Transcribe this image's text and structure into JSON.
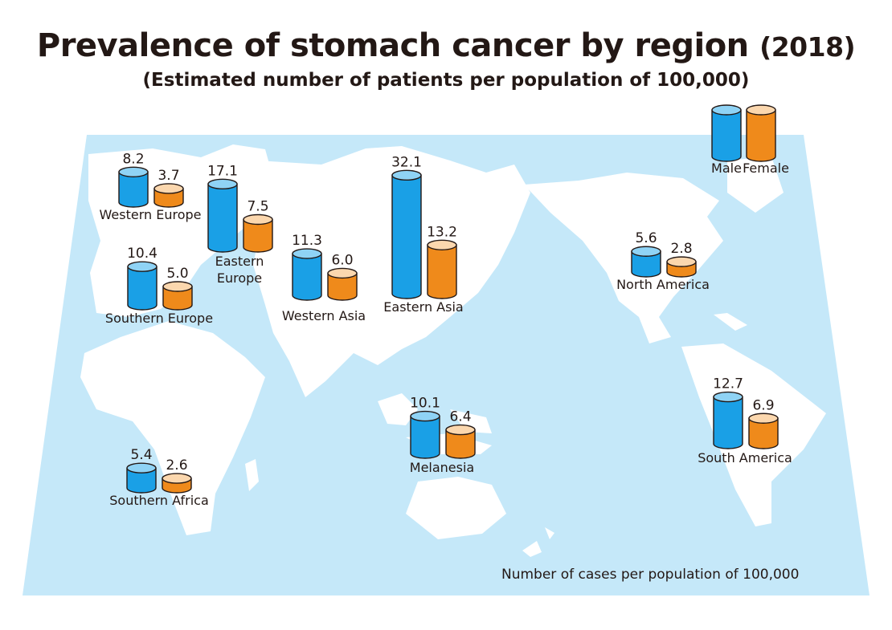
{
  "title": "Prevalence of stomach cancer by region",
  "title_year": "(2018)",
  "subtitle": "(Estimated number of patients per population of 100,000)",
  "footnote": "Number of cases per population of 100,000",
  "colors": {
    "map_background": "#c5e8f9",
    "land": "#ffffff",
    "male": "#1aa0e6",
    "male_light": "#8fd3f5",
    "female": "#ef8a1b",
    "female_light": "#fbd7ae",
    "outline": "#231815"
  },
  "chart_data": {
    "type": "bar",
    "title": "Prevalence of stomach cancer by region (2018)",
    "subtitle": "(Estimated number of patients per population of 100,000)",
    "ylabel": "Number of cases per population of 100,000",
    "legend": {
      "placement": "top-right",
      "entries": [
        "Male",
        "Female"
      ]
    },
    "series": [
      {
        "name": "Male",
        "values": [
          8.2,
          10.4,
          17.1,
          11.3,
          32.1,
          5.6,
          12.7,
          10.1,
          5.4
        ]
      },
      {
        "name": "Female",
        "values": [
          3.7,
          5.0,
          7.5,
          6.0,
          13.2,
          2.8,
          6.9,
          6.4,
          2.6
        ]
      }
    ],
    "categories": [
      "Western Europe",
      "Southern Europe",
      "Eastern Europe",
      "Western Asia",
      "Eastern Asia",
      "North America",
      "South America",
      "Melanesia",
      "Southern Africa"
    ],
    "regions": [
      {
        "name": "Western Europe",
        "label_lines": [
          "Western Europe"
        ],
        "male": 8.2,
        "female": 3.7
      },
      {
        "name": "Southern Europe",
        "label_lines": [
          "Southern Europe"
        ],
        "male": 10.4,
        "female": 5.0
      },
      {
        "name": "Eastern Europe",
        "label_lines": [
          "Eastern",
          "Europe"
        ],
        "male": 17.1,
        "female": 7.5
      },
      {
        "name": "Western Asia",
        "label_lines": [
          "Western Asia"
        ],
        "male": 11.3,
        "female": 6.0
      },
      {
        "name": "Eastern Asia",
        "label_lines": [
          "Eastern Asia"
        ],
        "male": 32.1,
        "female": 13.2
      },
      {
        "name": "North America",
        "label_lines": [
          "North America"
        ],
        "male": 5.6,
        "female": 2.8
      },
      {
        "name": "South America",
        "label_lines": [
          "South America"
        ],
        "male": 12.7,
        "female": 6.9
      },
      {
        "name": "Melanesia",
        "label_lines": [
          "Melanesia"
        ],
        "male": 10.1,
        "female": 6.4
      },
      {
        "name": "Southern Africa",
        "label_lines": [
          "Southern Africa"
        ],
        "male": 5.4,
        "female": 2.6
      }
    ]
  }
}
